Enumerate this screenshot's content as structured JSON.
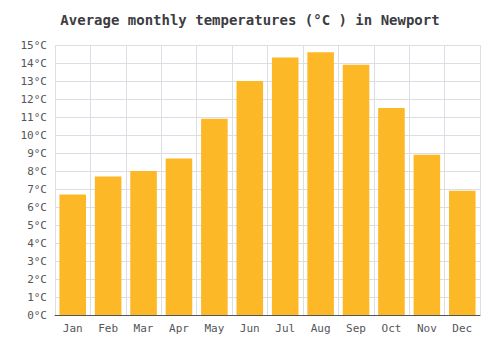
{
  "chart_data": {
    "type": "bar",
    "title": "Average monthly temperatures (°C ) in Newport",
    "categories": [
      "Jan",
      "Feb",
      "Mar",
      "Apr",
      "May",
      "Jun",
      "Jul",
      "Aug",
      "Sep",
      "Oct",
      "Nov",
      "Dec"
    ],
    "values": [
      6.7,
      7.7,
      8.0,
      8.7,
      10.9,
      13.0,
      14.3,
      14.6,
      13.9,
      11.5,
      8.9,
      6.9
    ],
    "color": "#FDB827",
    "ylim": [
      0,
      15
    ],
    "yticks": [
      {
        "value": 0,
        "label": "0°C"
      },
      {
        "value": 1,
        "label": "1°C"
      },
      {
        "value": 2,
        "label": "2°C"
      },
      {
        "value": 3,
        "label": "3°C"
      },
      {
        "value": 4,
        "label": "4°C"
      },
      {
        "value": 5,
        "label": "5°C"
      },
      {
        "value": 6,
        "label": "6°C"
      },
      {
        "value": 7,
        "label": "7°C"
      },
      {
        "value": 8,
        "label": "8°C"
      },
      {
        "value": 9,
        "label": "9°C"
      },
      {
        "value": 10,
        "label": "10°C"
      },
      {
        "value": 11,
        "label": "11°C"
      },
      {
        "value": 12,
        "label": "12°C"
      },
      {
        "value": 13,
        "label": "13°C"
      },
      {
        "value": 14,
        "label": "14°C"
      },
      {
        "value": 15,
        "label": "15°C"
      }
    ],
    "grid": true
  }
}
